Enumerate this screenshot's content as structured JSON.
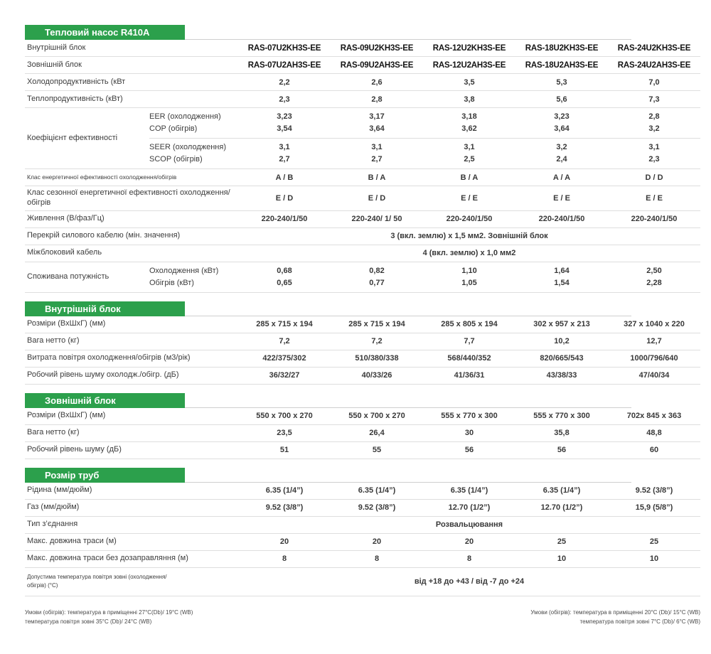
{
  "colors": {
    "accent_green": "#2CA04C",
    "border_gray": "#dedede",
    "banner_text": "#ffffff"
  },
  "sections": [
    {
      "banner": "Тепловий насос  R410A",
      "rows": [
        {
          "type": "plain",
          "label": "Внутрішній блок",
          "bold_values": true,
          "values": [
            "RAS-07U2KH3S-EE",
            "RAS-09U2KH3S-EE",
            "RAS-12U2KH3S-EE",
            "RAS-18U2KH3S-EE",
            "RAS-24U2KH3S-EE"
          ]
        },
        {
          "type": "plain",
          "label": "Зовнішній блок",
          "bold_values": true,
          "values": [
            "RAS-07U2AH3S-EE",
            "RAS-09U2AH3S-EE",
            "RAS-12U2AH3S-EE",
            "RAS-18U2AH3S-EE",
            "RAS-24U2AH3S-EE"
          ]
        },
        {
          "type": "plain",
          "label": "Холодопродуктивність (кВт",
          "values": [
            "2,2",
            "2,6",
            "3,5",
            "5,3",
            "7,0"
          ]
        },
        {
          "type": "plain",
          "label": "Теплопродуктивність  (кВт)",
          "values": [
            "2,3",
            "2,8",
            "3,8",
            "5,6",
            "7,3"
          ]
        },
        {
          "type": "group",
          "label": "Коефіцієнт ефективності",
          "blocks": [
            {
              "lines": [
                {
                  "sublabel": "EER (охолодження)",
                  "values": [
                    "3,23",
                    "3,17",
                    "3,18",
                    "3,23",
                    "2,8"
                  ]
                },
                {
                  "sublabel": "COP (обігрів)",
                  "values": [
                    "3,54",
                    "3,64",
                    "3,62",
                    "3,64",
                    "3,2"
                  ]
                }
              ]
            },
            {
              "lines": [
                {
                  "sublabel": "SEER (охолодження)",
                  "values": [
                    "3,1",
                    "3,1",
                    "3,1",
                    "3,2",
                    "3,1"
                  ]
                },
                {
                  "sublabel": "SCOP (обігрів)",
                  "values": [
                    "2,7",
                    "2,7",
                    "2,5",
                    "2,4",
                    "2,3"
                  ]
                }
              ]
            }
          ]
        },
        {
          "type": "plain",
          "label": "Клас енергетичної ефективності охолодження/обігрів",
          "small_label": true,
          "values": [
            "A / B",
            "B / A",
            "B / A",
            "A / A",
            "D / D"
          ]
        },
        {
          "type": "plain",
          "label": "Клас сезонної енергетичної ефективності охолодження/обігрів",
          "values": [
            "E / D",
            "E / D",
            "E / E",
            "E / E",
            "E / E"
          ]
        },
        {
          "type": "plain",
          "label": "Живлення (В/фаз/Гц)",
          "values": [
            "220-240/1/50",
            "220-240/ 1/ 50",
            "220-240/1/50",
            "220-240/1/50",
            "220-240/1/50"
          ]
        },
        {
          "type": "span",
          "label": "Перекрій силового кабелю (мін. значення)",
          "span": "3 (вкл. землю) х 1,5 мм2. Зовнішній блок"
        },
        {
          "type": "span",
          "label": "Міжблоковий кабель",
          "span": "4 (вкл. землю) х 1,0 мм2"
        },
        {
          "type": "group",
          "label": "Споживана потужність",
          "blocks": [
            {
              "lines": [
                {
                  "sublabel": "Охолодження (кВт)",
                  "values": [
                    "0,68",
                    "0,82",
                    "1,10",
                    "1,64",
                    "2,50"
                  ]
                },
                {
                  "sublabel": "Обігрів (кВт)",
                  "values": [
                    "0,65",
                    "0,77",
                    "1,05",
                    "1,54",
                    "2,28"
                  ]
                }
              ]
            }
          ]
        }
      ]
    },
    {
      "banner": "Внутрішній блок",
      "rows": [
        {
          "type": "plain",
          "label": "Розміри (ВхШхГ) (мм)",
          "values": [
            "285 x 715 x 194",
            "285 x 715 x 194",
            "285 x 805 x 194",
            "302 x 957 x 213",
            "327 x 1040 x 220"
          ]
        },
        {
          "type": "plain",
          "label": "Вага нетто (кг)",
          "values": [
            "7,2",
            "7,2",
            "7,7",
            "10,2",
            "12,7"
          ]
        },
        {
          "type": "plain",
          "label": "Витрата повітря охолодження/обігрів (м3/рік)",
          "values": [
            "422/375/302",
            "510/380/338",
            "568/440/352",
            "820/665/543",
            "1000/796/640"
          ]
        },
        {
          "type": "plain",
          "label": "Робочий рівень шуму охолодж./обігр. (дБ)",
          "values": [
            "36/32/27",
            "40/33/26",
            "41/36/31",
            "43/38/33",
            "47/40/34"
          ]
        }
      ]
    },
    {
      "banner": "Зовнішній блок",
      "rows": [
        {
          "type": "plain",
          "label": "Розміри (ВхШхГ) (мм)",
          "values": [
            "550 x 700 x 270",
            "550 x 700 x 270",
            "555 x 770 x 300",
            "555 x 770 x 300",
            "702x 845 x 363"
          ]
        },
        {
          "type": "plain",
          "label": "Вага нетто (кг)",
          "values": [
            "23,5",
            "26,4",
            "30",
            "35,8",
            "48,8"
          ]
        },
        {
          "type": "plain",
          "label": "Робочий рівень шуму (дБ)",
          "values": [
            "51",
            "55",
            "56",
            "56",
            "60"
          ]
        }
      ]
    },
    {
      "banner": "Розмір труб",
      "rows": [
        {
          "type": "plain",
          "label": "Рідина (мм/дюйм)",
          "values": [
            "6.35 (1/4”)",
            "6.35 (1/4”)",
            "6.35 (1/4”)",
            "6.35 (1/4”)",
            "9.52 (3/8”)"
          ]
        },
        {
          "type": "plain",
          "label": "Газ (мм/дюйм)",
          "values": [
            "9.52 (3/8”)",
            "9.52 (3/8”)",
            "12.70 (1/2”)",
            "12.70 (1/2”)",
            "15,9 (5/8”)"
          ]
        },
        {
          "type": "span",
          "label": "Тип з’єднання",
          "span": "Розвальцювання"
        },
        {
          "type": "plain",
          "label": "Макс. довжина траси (м)",
          "values": [
            "20",
            "20",
            "20",
            "25",
            "25"
          ]
        },
        {
          "type": "plain",
          "label": "Макс. довжина траси без дозаправляння (м)",
          "values": [
            "8",
            "8",
            "8",
            "10",
            "10"
          ]
        },
        {
          "type": "span",
          "label": "Допустима температура повітря зовні (охолодження/ обігрів) (°С)",
          "tall": true,
          "span": "від +18 до +43 / від -7 до +24"
        }
      ]
    }
  ],
  "footnotes": {
    "left": [
      "Умови (обігрів): температура в приміщенні  27°C(Db)/ 19°C (WB)",
      "температура повітря зовні 35°C (Db)/ 24°C (WB)"
    ],
    "right": [
      "Умови (обігрів): температура в приміщенні 20°C (Db)/ 15°C (WB)",
      "температура повітря зовні 7°C (Db)/ 6°C (WB)"
    ]
  }
}
